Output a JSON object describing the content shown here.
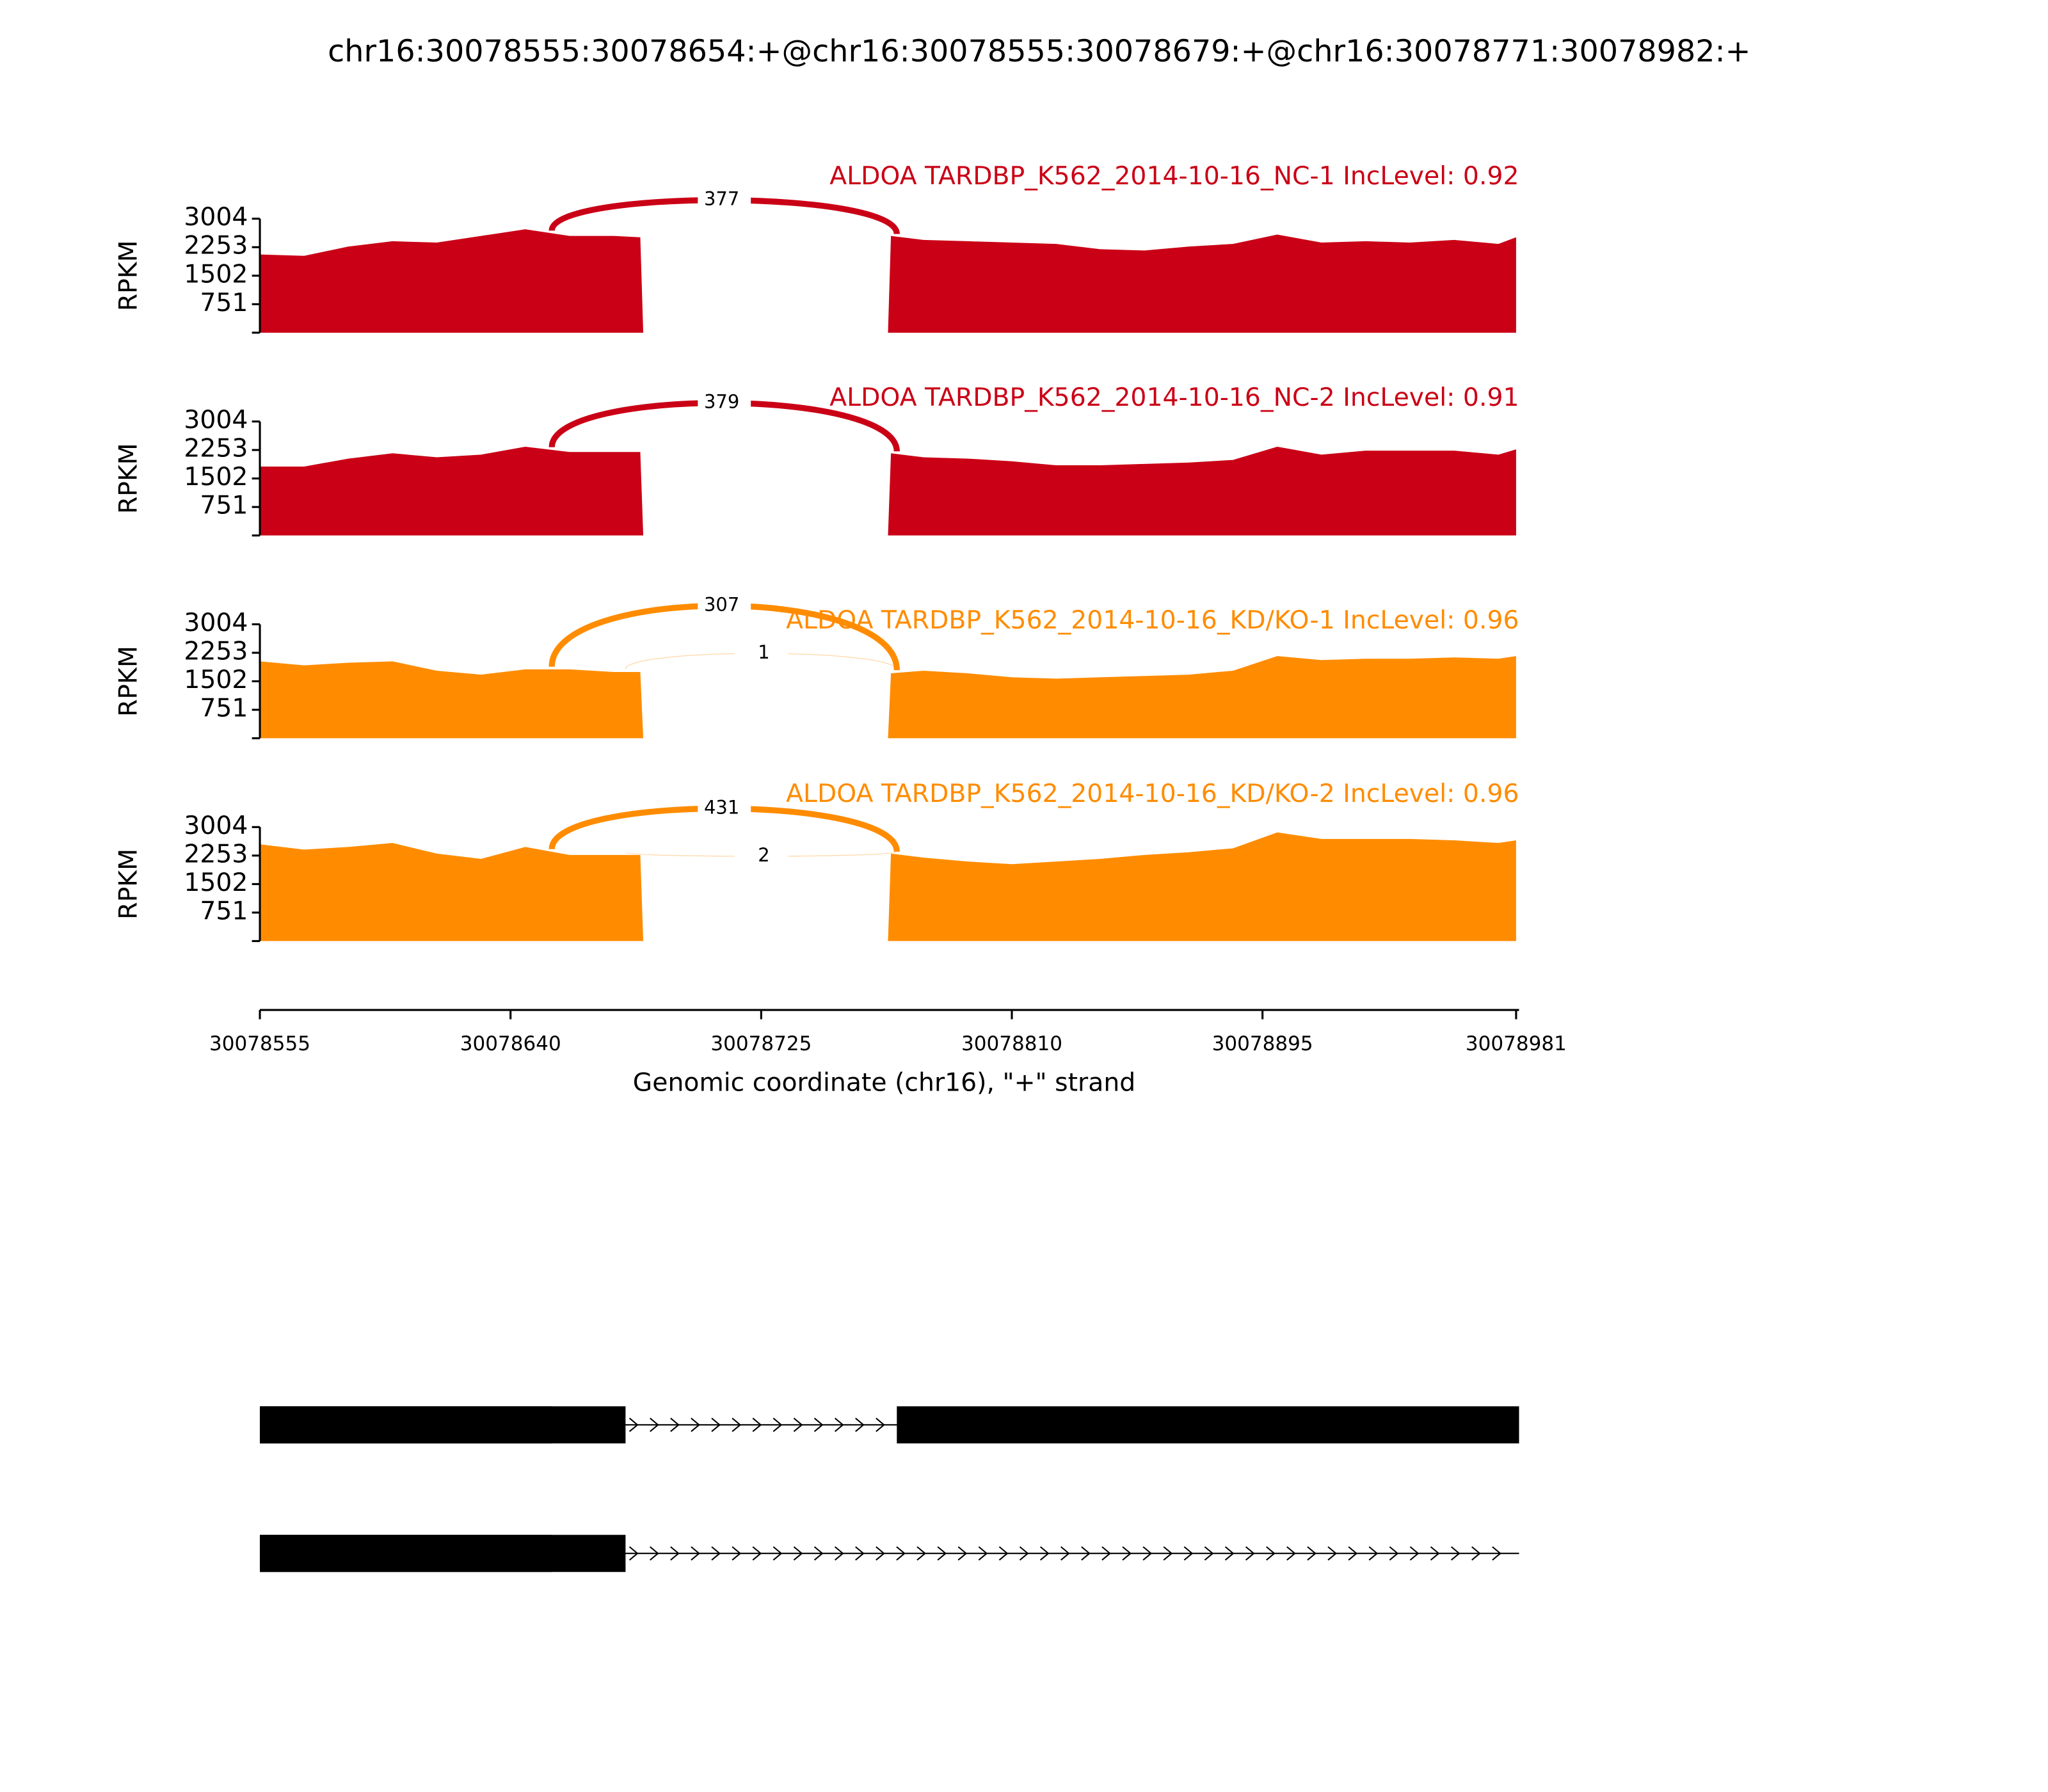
{
  "title": "chr16:30078555:30078654:+@chr16:30078555:30078679:+@chr16:30078771:30078982:+",
  "chart_data": [
    {
      "type": "area",
      "title": "ALDOA TARDBP_K562_2014-10-16_NC-1 IncLevel: 0.92",
      "color": "#ca0016",
      "ylabel": "RPKM",
      "ylim": [
        0,
        3004
      ],
      "yticks": [
        751,
        1502,
        2253,
        3004
      ],
      "x": [
        30078555,
        30078570,
        30078585,
        30078600,
        30078615,
        30078630,
        30078645,
        30078660,
        30078675,
        30078684,
        30078685,
        30078768,
        30078769,
        30078780,
        30078795,
        30078810,
        30078825,
        30078840,
        30078855,
        30078870,
        30078885,
        30078900,
        30078915,
        30078930,
        30078945,
        30078960,
        30078975,
        30078981
      ],
      "values": [
        2061,
        2026,
        2270,
        2410,
        2375,
        2550,
        2725,
        2550,
        2550,
        2515,
        0,
        0,
        2550,
        2445,
        2410,
        2375,
        2340,
        2200,
        2166,
        2270,
        2340,
        2585,
        2375,
        2410,
        2375,
        2445,
        2340,
        2515
      ],
      "junctions": [
        {
          "start": 30078654,
          "end": 30078771,
          "count": 377
        }
      ]
    },
    {
      "type": "area",
      "title": "ALDOA TARDBP_K562_2014-10-16_NC-2 IncLevel: 0.91",
      "color": "#ca0016",
      "ylabel": "RPKM",
      "ylim": [
        0,
        3004
      ],
      "yticks": [
        751,
        1502,
        2253,
        3004
      ],
      "x": [
        30078555,
        30078570,
        30078585,
        30078600,
        30078615,
        30078630,
        30078645,
        30078660,
        30078675,
        30078684,
        30078685,
        30078768,
        30078769,
        30078780,
        30078795,
        30078810,
        30078825,
        30078840,
        30078855,
        30078870,
        30078885,
        30078900,
        30078915,
        30078930,
        30078945,
        30078960,
        30078975,
        30078981
      ],
      "values": [
        1816,
        1816,
        2026,
        2166,
        2061,
        2131,
        2340,
        2200,
        2200,
        2200,
        0,
        0,
        2166,
        2061,
        2026,
        1956,
        1851,
        1851,
        1886,
        1921,
        1991,
        2340,
        2131,
        2235,
        2235,
        2235,
        2131,
        2270
      ],
      "junctions": [
        {
          "start": 30078654,
          "end": 30078771,
          "count": 379
        }
      ]
    },
    {
      "type": "area",
      "title": "ALDOA TARDBP_K562_2014-10-16_KD/KO-1 IncLevel: 0.96",
      "color": "#ff8c00",
      "ylabel": "RPKM",
      "ylim": [
        0,
        3004
      ],
      "yticks": [
        751,
        1502,
        2253,
        3004
      ],
      "x": [
        30078555,
        30078570,
        30078585,
        30078600,
        30078615,
        30078630,
        30078645,
        30078660,
        30078675,
        30078684,
        30078685,
        30078768,
        30078769,
        30078780,
        30078795,
        30078810,
        30078825,
        30078840,
        30078855,
        30078870,
        30078885,
        30078900,
        30078915,
        30078930,
        30078945,
        30078960,
        30078975,
        30078981
      ],
      "values": [
        2026,
        1921,
        1991,
        2026,
        1781,
        1677,
        1816,
        1816,
        1746,
        1746,
        0,
        0,
        1712,
        1781,
        1712,
        1607,
        1572,
        1607,
        1642,
        1677,
        1781,
        2166,
        2061,
        2096,
        2096,
        2131,
        2096,
        2166
      ],
      "junctions": [
        {
          "start": 30078654,
          "end": 30078771,
          "count": 307
        },
        {
          "start": 30078679,
          "end": 30078771,
          "count": 1
        }
      ]
    },
    {
      "type": "area",
      "title": "ALDOA TARDBP_K562_2014-10-16_KD/KO-2 IncLevel: 0.96",
      "color": "#ff8c00",
      "ylabel": "RPKM",
      "ylim": [
        0,
        3004
      ],
      "yticks": [
        751,
        1502,
        2253,
        3004
      ],
      "x": [
        30078555,
        30078570,
        30078585,
        30078600,
        30078615,
        30078630,
        30078645,
        30078660,
        30078675,
        30078684,
        30078685,
        30078768,
        30078769,
        30078780,
        30078795,
        30078810,
        30078825,
        30078840,
        30078855,
        30078870,
        30078885,
        30078900,
        30078915,
        30078930,
        30078945,
        30078960,
        30078975,
        30078981
      ],
      "values": [
        2550,
        2410,
        2480,
        2585,
        2305,
        2166,
        2480,
        2270,
        2270,
        2270,
        0,
        0,
        2305,
        2200,
        2096,
        2026,
        2096,
        2166,
        2270,
        2340,
        2445,
        2864,
        2690,
        2690,
        2690,
        2655,
        2585,
        2655
      ],
      "junctions": [
        {
          "start": 30078654,
          "end": 30078771,
          "count": 431
        },
        {
          "start": 30078679,
          "end": 30078771,
          "count": 2
        }
      ]
    }
  ],
  "x_axis": {
    "label": "Genomic coordinate (chr16), \"+\" strand",
    "xlim": [
      30078555,
      30078982
    ],
    "xticks": [
      30078555,
      30078640,
      30078725,
      30078810,
      30078895,
      30078981
    ]
  },
  "gene_models": [
    {
      "exons": [
        [
          30078555,
          30078654
        ],
        [
          30078555,
          30078679
        ],
        [
          30078771,
          30078982
        ]
      ],
      "end": 30078982
    },
    {
      "exons": [
        [
          30078555,
          30078654
        ],
        [
          30078555,
          30078679
        ]
      ],
      "end": 30078982
    }
  ]
}
